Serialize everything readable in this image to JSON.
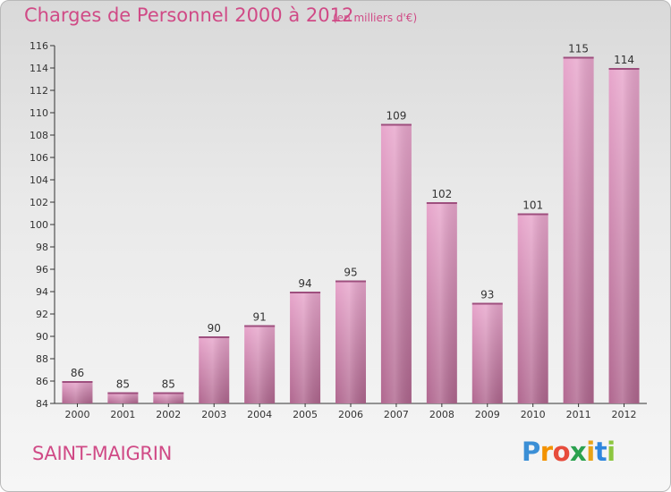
{
  "title": "Charges de Personnel 2000 à 2012",
  "subtitle": "(en milliers d'€)",
  "commune": "SAINT-MAIGRIN",
  "logo": {
    "letters": [
      "P",
      "r",
      "o",
      "x",
      "i",
      "t",
      "i"
    ],
    "colors": [
      "#3b8fd6",
      "#f39200",
      "#e74c3c",
      "#2ba14f",
      "#e8a317",
      "#2e86de",
      "#8cc63f"
    ]
  },
  "colors": {
    "accent": "#d04a86",
    "bar": "#e2a0c6",
    "bar_dark": "#b56a98"
  },
  "chart_data": {
    "type": "bar",
    "title": "Charges de Personnel 2000 à 2012",
    "subtitle": "(en milliers d'€)",
    "categories": [
      "2000",
      "2001",
      "2002",
      "2003",
      "2004",
      "2005",
      "2006",
      "2007",
      "2008",
      "2009",
      "2010",
      "2011",
      "2012"
    ],
    "values": [
      86,
      85,
      85,
      90,
      91,
      94,
      95,
      109,
      102,
      93,
      101,
      115,
      114
    ],
    "ylim": [
      84,
      116
    ],
    "yticks": [
      84,
      86,
      88,
      90,
      92,
      94,
      96,
      98,
      100,
      102,
      104,
      106,
      108,
      110,
      112,
      114,
      116
    ],
    "xlabel": "",
    "ylabel": "",
    "grid": false,
    "legend": "none"
  }
}
